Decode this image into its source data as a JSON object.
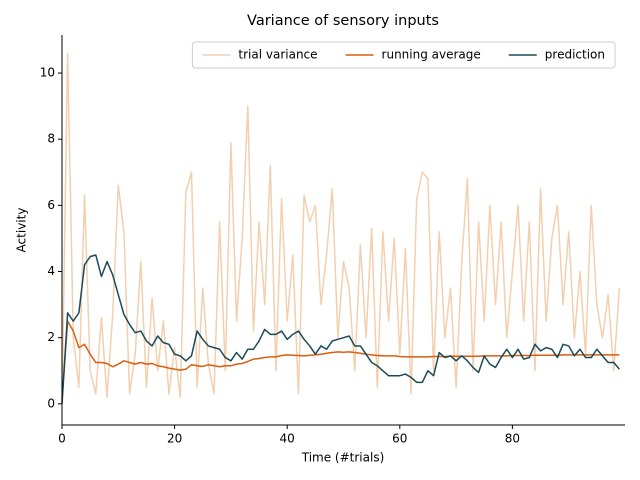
{
  "chart_data": {
    "type": "line",
    "title": "Variance of sensory inputs",
    "xlabel": "Time (#trials)",
    "ylabel": "Activity",
    "x": [
      0,
      1,
      2,
      3,
      4,
      5,
      6,
      7,
      8,
      9,
      10,
      11,
      12,
      13,
      14,
      15,
      16,
      17,
      18,
      19,
      20,
      21,
      22,
      23,
      24,
      25,
      26,
      27,
      28,
      29,
      30,
      31,
      32,
      33,
      34,
      35,
      36,
      37,
      38,
      39,
      40,
      41,
      42,
      43,
      44,
      45,
      46,
      47,
      48,
      49,
      50,
      51,
      52,
      53,
      54,
      55,
      56,
      57,
      58,
      59,
      60,
      61,
      62,
      63,
      64,
      65,
      66,
      67,
      68,
      69,
      70,
      71,
      72,
      73,
      74,
      75,
      76,
      77,
      78,
      79,
      80,
      81,
      82,
      83,
      84,
      85,
      86,
      87,
      88,
      89,
      90,
      91,
      92,
      93,
      94,
      95,
      96,
      97,
      98,
      99
    ],
    "series": [
      {
        "name": "trial variance",
        "color": "#f3cfae",
        "values": [
          0,
          10.6,
          2.0,
          0.5,
          6.3,
          1.0,
          0.3,
          2.6,
          0.2,
          2.7,
          6.6,
          5.2,
          0.3,
          1.5,
          4.3,
          0.5,
          3.2,
          1.0,
          2.5,
          0.3,
          1.7,
          0.2,
          6.4,
          7.0,
          0.5,
          3.5,
          1.2,
          0.3,
          5.5,
          1.0,
          7.9,
          2.5,
          5.0,
          9.0,
          2.2,
          5.5,
          3.0,
          7.2,
          1.0,
          6.2,
          2.5,
          4.5,
          0.3,
          6.3,
          5.5,
          6.0,
          3.0,
          4.5,
          6.5,
          2.0,
          4.3,
          3.5,
          1.0,
          4.8,
          2.0,
          5.3,
          0.5,
          5.2,
          2.5,
          5.0,
          1.5,
          4.7,
          0.3,
          6.2,
          7.0,
          6.8,
          1.0,
          5.2,
          2.0,
          3.5,
          0.5,
          4.3,
          6.8,
          1.0,
          5.5,
          2.5,
          6.0,
          3.0,
          5.5,
          2.0,
          4.0,
          6.0,
          2.5,
          5.5,
          1.0,
          6.5,
          2.5,
          5.0,
          6.0,
          3.0,
          5.2,
          2.0,
          4.0,
          1.5,
          6.0,
          3.0,
          2.0,
          3.3,
          1.0,
          3.5
        ]
      },
      {
        "name": "running average",
        "color": "#d95f0e",
        "values": [
          0.1,
          2.5,
          2.2,
          1.7,
          1.8,
          1.5,
          1.25,
          1.25,
          1.22,
          1.12,
          1.2,
          1.3,
          1.25,
          1.2,
          1.25,
          1.2,
          1.22,
          1.15,
          1.12,
          1.08,
          1.05,
          1.02,
          1.05,
          1.18,
          1.15,
          1.13,
          1.18,
          1.15,
          1.12,
          1.15,
          1.15,
          1.2,
          1.22,
          1.28,
          1.35,
          1.37,
          1.4,
          1.42,
          1.42,
          1.46,
          1.48,
          1.47,
          1.46,
          1.45,
          1.47,
          1.48,
          1.5,
          1.53,
          1.55,
          1.57,
          1.56,
          1.57,
          1.55,
          1.53,
          1.5,
          1.48,
          1.46,
          1.45,
          1.45,
          1.45,
          1.43,
          1.42,
          1.42,
          1.42,
          1.42,
          1.42,
          1.43,
          1.43,
          1.43,
          1.44,
          1.44,
          1.44,
          1.44,
          1.44,
          1.44,
          1.45,
          1.45,
          1.45,
          1.45,
          1.45,
          1.46,
          1.46,
          1.46,
          1.46,
          1.47,
          1.47,
          1.47,
          1.47,
          1.47,
          1.48,
          1.48,
          1.48,
          1.48,
          1.48,
          1.48,
          1.48,
          1.48,
          1.48,
          1.48,
          1.48
        ]
      },
      {
        "name": "prediction",
        "color": "#1a4a5a",
        "values": [
          0,
          2.75,
          2.5,
          2.75,
          4.2,
          4.45,
          4.5,
          3.85,
          4.3,
          3.9,
          3.3,
          2.7,
          2.4,
          2.15,
          2.2,
          1.9,
          1.75,
          2.05,
          1.85,
          1.8,
          1.5,
          1.45,
          1.3,
          1.45,
          2.2,
          1.95,
          1.75,
          1.7,
          1.65,
          1.4,
          1.3,
          1.55,
          1.35,
          1.65,
          1.65,
          1.9,
          2.25,
          2.1,
          2.1,
          2.2,
          1.95,
          2.1,
          2.2,
          1.95,
          1.75,
          1.5,
          1.75,
          1.65,
          1.9,
          1.95,
          2.0,
          2.05,
          1.75,
          1.75,
          1.5,
          1.25,
          1.15,
          1.0,
          0.85,
          0.85,
          0.85,
          0.9,
          0.8,
          0.65,
          0.65,
          1.0,
          0.85,
          1.55,
          1.4,
          1.45,
          1.3,
          1.45,
          1.3,
          1.1,
          0.95,
          1.45,
          1.2,
          1.1,
          1.4,
          1.65,
          1.4,
          1.65,
          1.35,
          1.4,
          1.8,
          1.6,
          1.7,
          1.65,
          1.4,
          1.8,
          1.75,
          1.45,
          1.65,
          1.4,
          1.4,
          1.65,
          1.45,
          1.25,
          1.25,
          1.05
        ]
      }
    ],
    "xlim": [
      0,
      100
    ],
    "ylim": [
      -0.64,
      11.15
    ],
    "xticks": [
      0,
      20,
      40,
      60,
      80
    ],
    "yticks": [
      0,
      2,
      4,
      6,
      8,
      10
    ],
    "grid": false,
    "legend": "upper right",
    "legend_columns": 3
  }
}
